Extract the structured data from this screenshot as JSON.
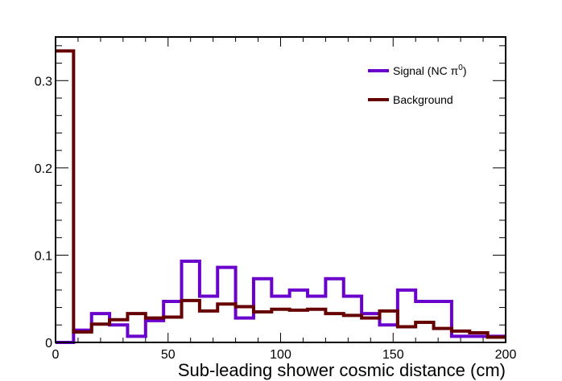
{
  "chart_data": {
    "type": "histogram",
    "xlabel": "Sub-leading shower cosmic distance (cm)",
    "ylabel": "",
    "xlim": [
      0,
      200
    ],
    "ylim": [
      0,
      0.35
    ],
    "bin_width": 8,
    "x_ticks": [
      "0",
      "50",
      "100",
      "150",
      "200"
    ],
    "y_ticks": [
      "0",
      "0.1",
      "0.2",
      "0.3"
    ],
    "y_tick_values": [
      0,
      0.1,
      0.2,
      0.3
    ],
    "x_tick_values": [
      0,
      50,
      100,
      150,
      200
    ],
    "grid": false,
    "legend_position": "top-right",
    "series": [
      {
        "name": "Signal (NC π",
        "name_sup": "0",
        "name_suffix": ")",
        "color": "#6a00cc",
        "values": [
          0.0,
          0.014,
          0.033,
          0.02,
          0.007,
          0.025,
          0.047,
          0.093,
          0.053,
          0.086,
          0.028,
          0.073,
          0.053,
          0.06,
          0.053,
          0.073,
          0.053,
          0.033,
          0.02,
          0.06,
          0.047,
          0.047,
          0.007,
          0.007,
          0.007
        ]
      },
      {
        "name": "Background",
        "color": "#660000",
        "values": [
          0.334,
          0.012,
          0.021,
          0.026,
          0.033,
          0.028,
          0.029,
          0.048,
          0.036,
          0.044,
          0.041,
          0.035,
          0.038,
          0.037,
          0.038,
          0.033,
          0.031,
          0.028,
          0.036,
          0.018,
          0.023,
          0.016,
          0.013,
          0.011,
          0.006
        ]
      }
    ]
  }
}
